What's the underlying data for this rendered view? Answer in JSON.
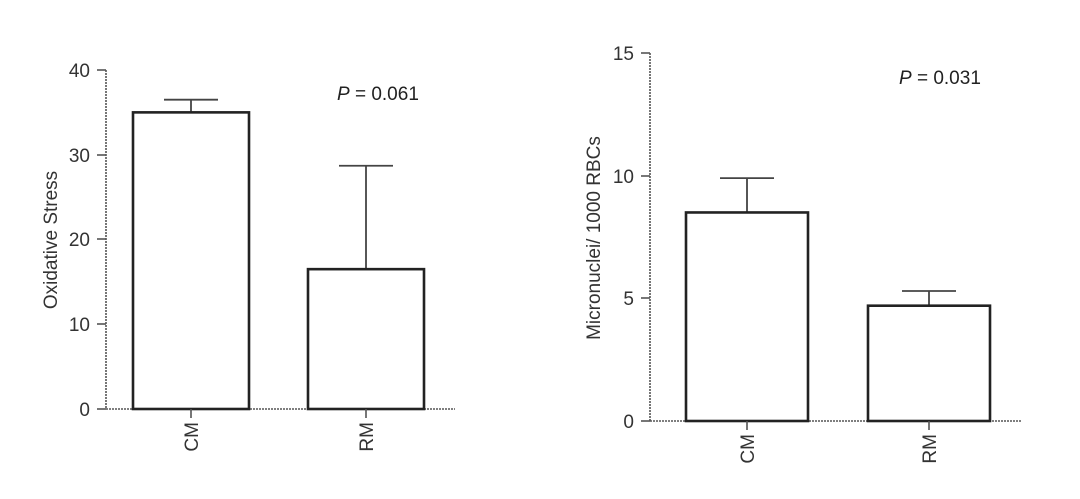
{
  "chart_data": [
    {
      "type": "bar",
      "categories": [
        "CM",
        "RM"
      ],
      "values": [
        35,
        16.5
      ],
      "error_upper": [
        36.5,
        28.7
      ],
      "ylabel": "Oxidative Stress",
      "ylim": [
        0,
        40
      ],
      "yticks": [
        "0",
        "10",
        "20",
        "30",
        "40"
      ],
      "annotation": {
        "italic": "P",
        "text": " = 0.061"
      },
      "grid": false
    },
    {
      "type": "bar",
      "categories": [
        "CM",
        "RM"
      ],
      "values": [
        8.5,
        4.7
      ],
      "error_upper": [
        9.9,
        5.3
      ],
      "ylabel": "Micronuclei/ 1000 RBCs",
      "ylim": [
        0,
        15
      ],
      "yticks": [
        "0",
        "5",
        "10",
        "15"
      ],
      "annotation": {
        "italic": "P",
        "text": " = 0.031"
      },
      "grid": false
    }
  ]
}
